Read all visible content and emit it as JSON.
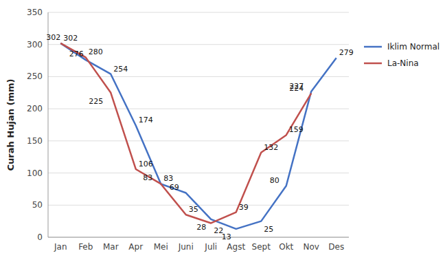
{
  "chart_data": {
    "type": "line",
    "y_label": "Curah Hujan (mm)",
    "categories": [
      "Jan",
      "Feb",
      "Mar",
      "Apr",
      "Mei",
      "Juni",
      "Juli",
      "Agst",
      "Sept",
      "Okt",
      "Nov",
      "Des"
    ],
    "series": [
      {
        "name": "Iklim Normal",
        "color": "#4472C4",
        "values": [
          302,
          276,
          254,
          174,
          83,
          69,
          28,
          13,
          25,
          80,
          227,
          279
        ]
      },
      {
        "name": "La-Nina",
        "color": "#C0504D",
        "values": [
          302,
          280,
          225,
          106,
          83,
          35,
          22,
          39,
          132,
          159,
          224,
          null
        ]
      }
    ],
    "ylim": [
      0,
      350
    ],
    "yticks": [
      0,
      50,
      100,
      150,
      200,
      250,
      300,
      350
    ],
    "grid": true,
    "legend": "right",
    "data_labels": true
  }
}
